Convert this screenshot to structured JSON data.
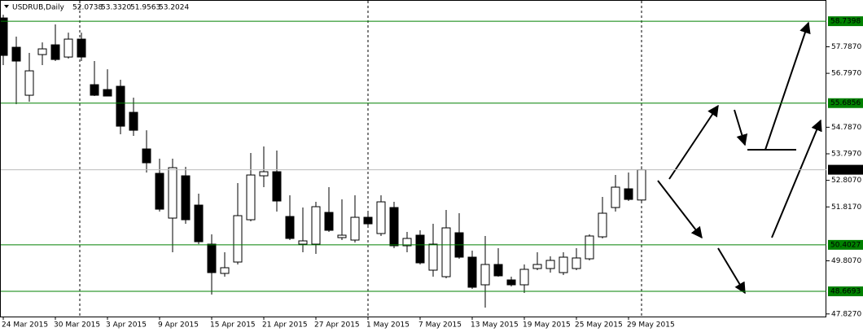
{
  "chart_data": {
    "type": "candlestick",
    "title": "USDRUB,Daily",
    "header": {
      "open": "52.0738",
      "high": "53.3320",
      "low": "51.9563",
      "close": "53.2024"
    },
    "categories": [
      "24 Mar 2015",
      null,
      null,
      null,
      "30 Mar 2015",
      null,
      null,
      null,
      "3 Apr 2015",
      null,
      null,
      null,
      "9 Apr 2015",
      null,
      null,
      null,
      "15 Apr 2015",
      null,
      null,
      null,
      "21 Apr 2015",
      null,
      null,
      null,
      "27 Apr 2015",
      null,
      null,
      null,
      "1 May 2015",
      null,
      null,
      null,
      "7 May 2015",
      null,
      null,
      null,
      "13 May 2015",
      null,
      null,
      null,
      "19 May 2015",
      null,
      null,
      null,
      "25 May 2015",
      null,
      null,
      null,
      "29 May 2015",
      null
    ],
    "open": [
      58.861,
      57.769,
      55.98,
      57.496,
      57.86,
      57.405,
      58.073,
      56.374,
      56.192,
      56.314,
      55.343,
      53.978,
      53.068,
      51.4,
      52.977,
      51.885,
      50.429,
      49.338,
      49.762,
      51.339,
      52.977,
      53.129,
      51.46,
      50.429,
      50.429,
      51.612,
      50.672,
      50.581,
      51.43,
      50.824,
      51.794,
      50.369,
      50.763,
      49.459,
      49.216,
      50.854,
      49.944,
      48.913,
      49.671,
      49.095,
      48.913,
      49.52,
      49.52,
      49.368,
      49.52,
      49.883,
      50.702,
      51.794,
      52.492,
      52.0738
    ],
    "high": [
      58.982,
      58.164,
      57.557,
      57.951,
      58.619,
      58.315,
      58.315,
      57.254,
      56.95,
      56.556,
      55.889,
      54.675,
      53.614,
      53.614,
      53.31,
      52.31,
      50.793,
      50.126,
      52.704,
      53.826,
      54.069,
      53.917,
      52.249,
      51.794,
      52.006,
      52.553,
      52.097,
      52.249,
      51.582,
      52.249,
      52.006,
      50.884,
      50.945,
      51.187,
      51.703,
      51.582,
      50.187,
      50.733,
      50.278,
      49.216,
      49.671,
      50.126,
      49.974,
      50.126,
      50.278,
      50.793,
      52.188,
      53.007,
      53.098,
      53.332
    ],
    "low": [
      57.102,
      55.646,
      55.737,
      57.102,
      57.254,
      57.345,
      57.254,
      55.95,
      55.95,
      54.524,
      54.463,
      53.098,
      51.642,
      50.126,
      51.187,
      50.429,
      48.549,
      49.216,
      49.671,
      51.278,
      52.553,
      51.642,
      50.581,
      50.126,
      50.065,
      50.884,
      50.581,
      50.49,
      51.096,
      50.733,
      50.278,
      50.126,
      49.671,
      49.216,
      49.156,
      49.883,
      48.761,
      48.063,
      49.216,
      48.852,
      48.609,
      49.459,
      49.368,
      49.277,
      49.459,
      49.823,
      50.642,
      51.642,
      52.037,
      51.9563
    ],
    "close": [
      57.466,
      57.254,
      56.89,
      57.709,
      57.314,
      58.073,
      57.405,
      55.98,
      55.95,
      54.827,
      54.675,
      53.462,
      51.733,
      53.28,
      51.339,
      50.52,
      49.368,
      49.55,
      51.491,
      53.007,
      53.129,
      52.037,
      50.642,
      50.551,
      51.825,
      50.945,
      50.763,
      51.43,
      51.187,
      52.006,
      50.369,
      50.642,
      49.732,
      50.429,
      51.036,
      49.944,
      48.822,
      49.671,
      49.247,
      48.913,
      49.49,
      49.671,
      49.823,
      49.944,
      49.914,
      50.733,
      51.582,
      52.553,
      52.097,
      53.2024
    ],
    "up_color": "#ffffff",
    "down_color": "#000000",
    "ylim": [
      47.73,
      59.47
    ],
    "yticks": [
      {
        "value": 57.787,
        "label": "57.7870"
      },
      {
        "value": 56.797,
        "label": "56.7970"
      },
      {
        "value": 54.787,
        "label": "54.7870"
      },
      {
        "value": 53.797,
        "label": "53.7970"
      },
      {
        "value": 52.807,
        "label": "52.8070"
      },
      {
        "value": 51.817,
        "label": "51.8170"
      },
      {
        "value": 49.807,
        "label": "49.8070"
      },
      {
        "value": 47.827,
        "label": "47.8270"
      }
    ],
    "levels": [
      58.7398,
      55.6856,
      50.4027,
      48.6693
    ],
    "level_color": "#008000"
  }
}
